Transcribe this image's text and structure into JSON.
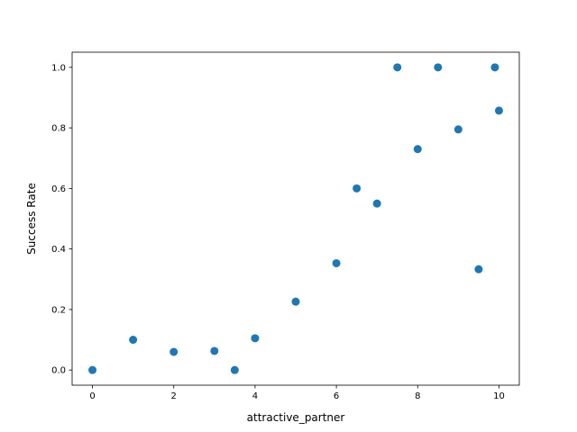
{
  "chart_data": {
    "type": "scatter",
    "title": "",
    "xlabel": "attractive_partner",
    "ylabel": "Success Rate",
    "xlim": [
      -0.5,
      10.5
    ],
    "ylim": [
      -0.05,
      1.05
    ],
    "xticks": [
      0,
      2,
      4,
      6,
      8,
      10
    ],
    "xtick_labels": [
      "0",
      "2",
      "4",
      "6",
      "8",
      "10"
    ],
    "yticks": [
      0.0,
      0.2,
      0.4,
      0.6,
      0.8,
      1.0
    ],
    "ytick_labels": [
      "0.0",
      "0.2",
      "0.4",
      "0.6",
      "0.8",
      "1.0"
    ],
    "grid": false,
    "series": [
      {
        "color": "#1f77b4",
        "points": [
          {
            "x": 0,
            "y": 0.0
          },
          {
            "x": 1,
            "y": 0.1
          },
          {
            "x": 2,
            "y": 0.06
          },
          {
            "x": 3,
            "y": 0.063
          },
          {
            "x": 3.5,
            "y": 0.0
          },
          {
            "x": 4,
            "y": 0.105
          },
          {
            "x": 5,
            "y": 0.226
          },
          {
            "x": 6,
            "y": 0.353
          },
          {
            "x": 6.5,
            "y": 0.6
          },
          {
            "x": 7,
            "y": 0.55
          },
          {
            "x": 7.5,
            "y": 1.0
          },
          {
            "x": 8,
            "y": 0.73
          },
          {
            "x": 8.5,
            "y": 1.0
          },
          {
            "x": 9,
            "y": 0.795
          },
          {
            "x": 9.5,
            "y": 0.333
          },
          {
            "x": 9.9,
            "y": 1.0
          },
          {
            "x": 10,
            "y": 0.857
          }
        ]
      }
    ]
  }
}
